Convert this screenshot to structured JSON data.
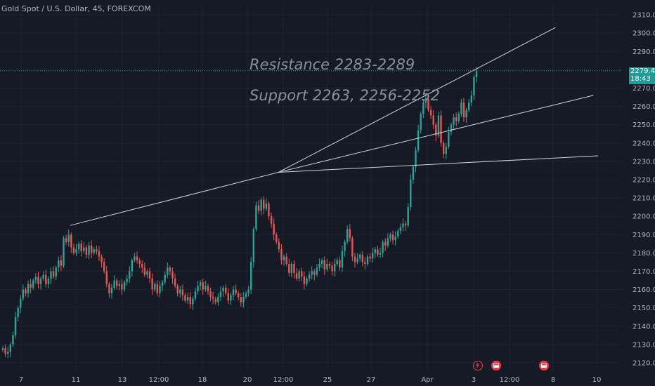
{
  "header": {
    "symbol_label": "Gold Spot / U.S. Dollar, 45, FOREXCOM"
  },
  "annotations": {
    "resistance": "Resistance 2283-2289",
    "support": "Support 2263, 2256-2252"
  },
  "price_badge": {
    "price": "2279.44",
    "countdown": "18:43"
  },
  "colors": {
    "background": "#161a25",
    "grid": "#1f2330",
    "up": "#26a69a",
    "down": "#ef5350",
    "trendline": "#d1d4dc",
    "text": "#b2b5be",
    "badge": "#1f9c95",
    "event_icon": "#f23645"
  },
  "event_icons": [
    "lightning-icon",
    "flag-event-icon",
    "flag-event-icon"
  ],
  "chart_data": {
    "type": "candlestick",
    "y_range": [
      2115,
      2315
    ],
    "y_ticks": [
      2120,
      2130,
      2140,
      2150,
      2160,
      2170,
      2180,
      2190,
      2200,
      2210,
      2220,
      2230,
      2240,
      2250,
      2260,
      2270,
      2280,
      2290,
      2300,
      2310
    ],
    "x_ticks": [
      "7",
      "11",
      "13",
      "12:00",
      "18",
      "20",
      "12:00",
      "25",
      "27",
      "Apr",
      "3",
      "12:00",
      "8",
      "10"
    ],
    "current_price": 2279.44,
    "series": [
      {
        "name": "price",
        "values": [
          2128,
          2125,
          2126,
          2130,
          2135,
          2145,
          2150,
          2155,
          2160,
          2158,
          2163,
          2161,
          2165,
          2167,
          2163,
          2166,
          2168,
          2163,
          2166,
          2170,
          2167,
          2172,
          2176,
          2173,
          2188,
          2186,
          2190,
          2183,
          2180,
          2182,
          2185,
          2181,
          2183,
          2179,
          2184,
          2180,
          2182,
          2181,
          2178,
          2175,
          2170,
          2163,
          2158,
          2161,
          2165,
          2162,
          2163,
          2160,
          2164,
          2166,
          2170,
          2176,
          2178,
          2176,
          2174,
          2172,
          2168,
          2170,
          2166,
          2160,
          2163,
          2158,
          2162,
          2164,
          2168,
          2172,
          2170,
          2166,
          2162,
          2158,
          2160,
          2157,
          2154,
          2156,
          2152,
          2155,
          2159,
          2162,
          2164,
          2160,
          2162,
          2159,
          2156,
          2155,
          2153,
          2156,
          2159,
          2161,
          2158,
          2154,
          2157,
          2160,
          2158,
          2156,
          2153,
          2156,
          2158,
          2160,
          2175,
          2193,
          2206,
          2203,
          2209,
          2204,
          2207,
          2200,
          2196,
          2190,
          2186,
          2182,
          2176,
          2178,
          2174,
          2169,
          2174,
          2169,
          2166,
          2170,
          2167,
          2163,
          2166,
          2168,
          2170,
          2168,
          2172,
          2174,
          2176,
          2171,
          2174,
          2173,
          2170,
          2174,
          2176,
          2172,
          2181,
          2186,
          2193,
          2188,
          2178,
          2175,
          2177,
          2179,
          2175,
          2174,
          2178,
          2177,
          2180,
          2182,
          2179,
          2180,
          2186,
          2184,
          2188,
          2190,
          2187,
          2189,
          2192,
          2194,
          2196,
          2195,
          2205,
          2220,
          2227,
          2236,
          2247,
          2256,
          2262,
          2264,
          2258,
          2255,
          2250,
          2244,
          2255,
          2240,
          2234,
          2238,
          2246,
          2250,
          2254,
          2252,
          2256,
          2262,
          2254,
          2258,
          2262,
          2266,
          2276,
          2279.44
        ]
      }
    ],
    "trendlines": [
      {
        "from": [
          0,
          2195
        ],
        "to": [
          0.69,
          2224
        ]
      },
      {
        "from": [
          0.49,
          2224
        ],
        "to": [
          0.978,
          2303
        ]
      },
      {
        "from": [
          0.49,
          2224
        ],
        "to": [
          1.045,
          2266
        ]
      },
      {
        "from": [
          0.49,
          2224
        ],
        "to": [
          1.058,
          2233
        ]
      }
    ],
    "horizontal_line": 2279.44,
    "grid": true,
    "price_scale": "right"
  }
}
